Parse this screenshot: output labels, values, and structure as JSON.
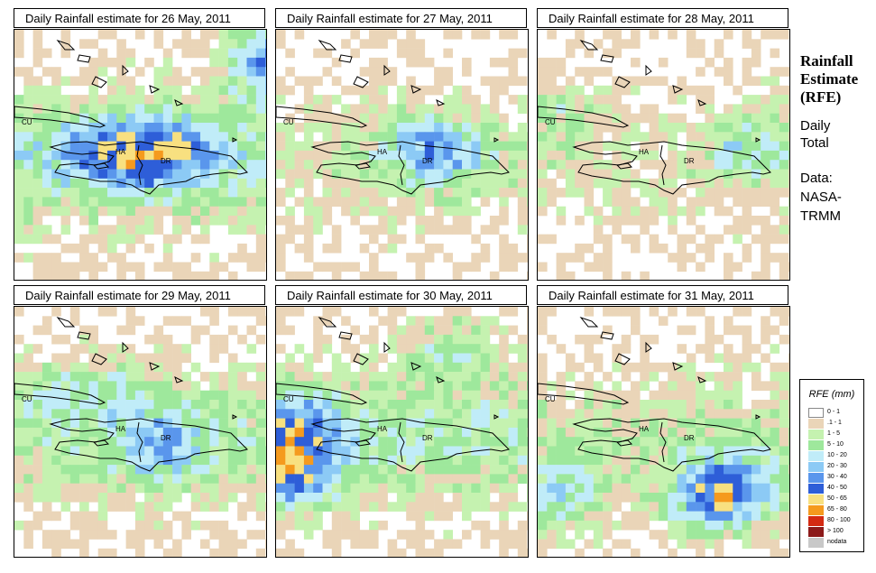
{
  "panels": [
    {
      "title": "Daily Rainfall estimate for  26 May, 2011",
      "seed": 11,
      "intensity": 1.0,
      "hot": [
        [
          0.97,
          0.1,
          1.2
        ],
        [
          0.6,
          0.45,
          0.6
        ],
        [
          0.45,
          0.5,
          0.5
        ],
        [
          0.3,
          0.45,
          0.5
        ]
      ]
    },
    {
      "title": "Daily Rainfall estimate for  27 May, 2011",
      "seed": 27,
      "intensity": 0.45,
      "hot": [
        [
          0.55,
          0.45,
          0.5
        ],
        [
          0.65,
          0.48,
          0.45
        ]
      ]
    },
    {
      "title": "Daily Rainfall estimate for  28 May, 2011",
      "seed": 38,
      "intensity": 0.4,
      "hot": [
        [
          0.8,
          0.45,
          0.5
        ],
        [
          0.05,
          0.3,
          0.35
        ]
      ]
    },
    {
      "title": "Daily Rainfall estimate for  29 May, 2011",
      "seed": 49,
      "intensity": 0.75,
      "hot": [
        [
          0.55,
          0.55,
          0.6
        ],
        [
          0.15,
          0.3,
          0.35
        ],
        [
          0.45,
          0.3,
          0.3
        ]
      ]
    },
    {
      "title": "Daily Rainfall estimate for  30 May, 2011",
      "seed": 60,
      "intensity": 0.9,
      "hot": [
        [
          0.03,
          0.65,
          1.1
        ],
        [
          0.05,
          0.45,
          0.7
        ],
        [
          0.65,
          0.15,
          0.5
        ]
      ]
    },
    {
      "title": "Daily Rainfall estimate for  31 May, 2011",
      "seed": 71,
      "intensity": 0.6,
      "hot": [
        [
          0.65,
          0.75,
          0.9
        ],
        [
          0.05,
          0.75,
          0.7
        ],
        [
          0.75,
          0.7,
          0.6
        ]
      ]
    }
  ],
  "country_labels": [
    "CU",
    "HA",
    "DR"
  ],
  "side": {
    "title_line1": "Rainfall",
    "title_line2": "Estimate",
    "title_line3": "(RFE)",
    "daily": "Daily",
    "total": "Total",
    "data_label": "Data:",
    "source1": "NASA-",
    "source2": "TRMM"
  },
  "legend": {
    "title": "RFE (mm)",
    "classes": [
      {
        "label": "0 - 1",
        "color": "#ffffff"
      },
      {
        "label": ".1 - 1",
        "color": "#ead5b8"
      },
      {
        "label": "1 - 5",
        "color": "#c5f2b0"
      },
      {
        "label": "5 - 10",
        "color": "#9ee89c"
      },
      {
        "label": "10 - 20",
        "color": "#c0ecf8"
      },
      {
        "label": "20 - 30",
        "color": "#8ccaf5"
      },
      {
        "label": "30 - 40",
        "color": "#5a96ec"
      },
      {
        "label": "40 - 50",
        "color": "#2e5ed8"
      },
      {
        "label": "50 - 65",
        "color": "#f8e080"
      },
      {
        "label": "65 - 80",
        "color": "#f59a1e"
      },
      {
        "label": "80 - 100",
        "color": "#d42a12"
      },
      {
        "label": "> 100",
        "color": "#8c1a1a"
      },
      {
        "label": "nodata",
        "color": "#c8c8c8"
      }
    ]
  }
}
